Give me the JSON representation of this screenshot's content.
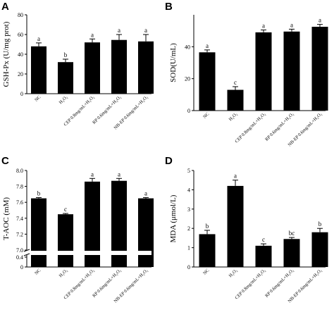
{
  "chart_data": [
    {
      "panel": "A",
      "type": "bar",
      "categories": [
        "NC",
        "H₂O₂",
        "CEP 0.8mg/mL+H₂O₂",
        "RP 0.6mg/mL+H₂O₂",
        "NB-EP 0.6mg/mL+H₂O₂"
      ],
      "values": [
        48,
        32,
        52,
        54.5,
        53
      ],
      "errors": [
        3.5,
        3,
        3.5,
        5.5,
        7
      ],
      "labels": [
        "a",
        "b",
        "a",
        "a",
        "a"
      ],
      "ylabel": "GSH-Px (U/mg prot)",
      "ylim": [
        0,
        80
      ],
      "yticks": [
        0,
        20,
        40,
        60,
        80
      ]
    },
    {
      "panel": "B",
      "type": "bar",
      "categories": [
        "NC",
        "H₂O₂",
        "CEP 0.8mg/mL+H₂O₂",
        "RP 0.6mg/mL+H₂O₂",
        "NB-EP 0.6mg/mL+H₂O₂"
      ],
      "values": [
        36.5,
        13,
        49,
        49.5,
        52.5
      ],
      "errors": [
        1.5,
        2,
        1.5,
        1.5,
        1.5
      ],
      "labels": [
        "a",
        "c",
        "a",
        "a",
        "a"
      ],
      "ylabel": "SOD(U/mL)",
      "ylim": [
        0,
        60
      ],
      "yticks": [
        0,
        20,
        40
      ]
    },
    {
      "panel": "C",
      "type": "bar",
      "categories": [
        "NC",
        "H₂O₂",
        "CEP 0.8mg/mL+H₂O₂",
        "RP 0.6mg/mL+H₂O₂",
        "NB-EP 0.6mg/mL+H₂O₂"
      ],
      "values": [
        7.65,
        7.45,
        7.86,
        7.87,
        7.65
      ],
      "errors": [
        0.01,
        0.01,
        0.04,
        0.03,
        0.01
      ],
      "labels": [
        "b",
        "c",
        "a",
        "a",
        "a"
      ],
      "ylabel": "T-AOC (mM)",
      "ylim": [
        7.0,
        8.0
      ],
      "yticks": [
        7.0,
        7.2,
        7.4,
        7.6,
        7.8,
        8.0
      ],
      "broken_axis": true,
      "lower_ticks": [
        "0.4",
        "0"
      ]
    },
    {
      "panel": "D",
      "type": "bar",
      "categories": [
        "NC",
        "H₂O₂",
        "CEP 0.8mg/mL+H₂O₂",
        "RP 0.6mg/mL+H₂O₂",
        "NB-EP 0.6mg/mL+H₂O₂"
      ],
      "values": [
        1.7,
        4.2,
        1.1,
        1.45,
        1.8
      ],
      "errors": [
        0.2,
        0.3,
        0.1,
        0.08,
        0.2
      ],
      "labels": [
        "b",
        "a",
        "c",
        "bc",
        "b"
      ],
      "ylabel": "MDA (μmol/L)",
      "ylim": [
        0,
        5
      ],
      "yticks": [
        0,
        1,
        2,
        3,
        4,
        5
      ]
    }
  ]
}
